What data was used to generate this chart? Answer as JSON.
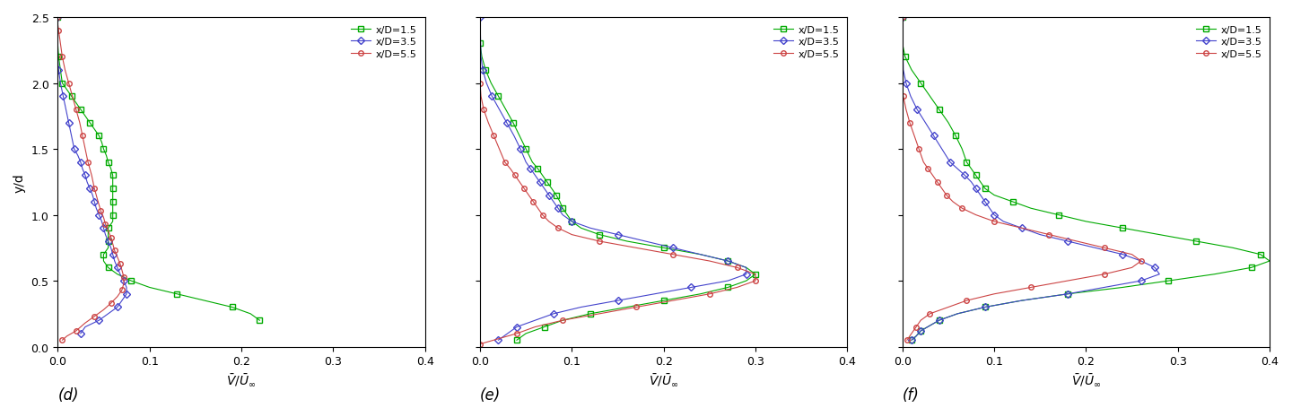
{
  "panels": [
    "d",
    "e",
    "f"
  ],
  "xlabel": "$\\bar{V}/\\bar{U}_{\\infty}$",
  "ylabel": "y/d",
  "xlim": [
    0,
    0.4
  ],
  "ylim": [
    0,
    2.5
  ],
  "xticks": [
    0,
    0.1,
    0.2,
    0.3,
    0.4
  ],
  "yticks": [
    0,
    0.5,
    1.0,
    1.5,
    2.0,
    2.5
  ],
  "legend_labels": [
    "x/D=1.5",
    "x/D=3.5",
    "x/D=5.5"
  ],
  "colors": [
    "#00aa00",
    "#4444cc",
    "#cc4444"
  ],
  "markers": [
    "s",
    "D",
    "o"
  ],
  "marker_size": 4,
  "line_width": 0.8,
  "panel_d": {
    "label": "(d)",
    "curves": {
      "xD1p5_v": [
        0.22,
        0.21,
        0.19,
        0.16,
        0.13,
        0.1,
        0.08,
        0.065,
        0.055,
        0.05,
        0.05,
        0.055,
        0.055,
        0.055,
        0.055,
        0.06,
        0.06,
        0.06,
        0.06,
        0.06,
        0.06,
        0.06,
        0.06,
        0.058,
        0.055,
        0.053,
        0.05,
        0.048,
        0.045,
        0.04,
        0.035,
        0.03,
        0.025,
        0.02,
        0.015,
        0.01,
        0.005,
        0.003,
        0.001,
        0.0,
        0.0
      ],
      "xD1p5_y": [
        0.2,
        0.25,
        0.3,
        0.35,
        0.4,
        0.45,
        0.5,
        0.55,
        0.6,
        0.65,
        0.7,
        0.75,
        0.8,
        0.85,
        0.9,
        0.95,
        1.0,
        1.05,
        1.1,
        1.15,
        1.2,
        1.25,
        1.3,
        1.35,
        1.4,
        1.45,
        1.5,
        1.55,
        1.6,
        1.65,
        1.7,
        1.75,
        1.8,
        1.85,
        1.9,
        1.95,
        2.0,
        2.1,
        2.2,
        2.3,
        2.5
      ],
      "xD3p5_v": [
        0.025,
        0.03,
        0.045,
        0.055,
        0.065,
        0.07,
        0.075,
        0.075,
        0.072,
        0.068,
        0.065,
        0.062,
        0.06,
        0.058,
        0.055,
        0.052,
        0.05,
        0.048,
        0.045,
        0.042,
        0.04,
        0.038,
        0.035,
        0.032,
        0.03,
        0.027,
        0.025,
        0.022,
        0.018,
        0.015,
        0.012,
        0.009,
        0.006,
        0.003,
        0.001,
        0.0,
        0.0
      ],
      "xD3p5_y": [
        0.1,
        0.15,
        0.2,
        0.25,
        0.3,
        0.35,
        0.4,
        0.45,
        0.5,
        0.55,
        0.6,
        0.65,
        0.7,
        0.75,
        0.8,
        0.85,
        0.9,
        0.95,
        1.0,
        1.05,
        1.1,
        1.15,
        1.2,
        1.25,
        1.3,
        1.35,
        1.4,
        1.45,
        1.5,
        1.6,
        1.7,
        1.8,
        1.9,
        2.0,
        2.1,
        2.2,
        2.5
      ],
      "xD5p5_v": [
        0.005,
        0.01,
        0.02,
        0.03,
        0.04,
        0.05,
        0.058,
        0.065,
        0.07,
        0.072,
        0.072,
        0.07,
        0.068,
        0.065,
        0.062,
        0.06,
        0.058,
        0.055,
        0.052,
        0.05,
        0.047,
        0.044,
        0.04,
        0.037,
        0.033,
        0.03,
        0.027,
        0.024,
        0.02,
        0.016,
        0.012,
        0.008,
        0.005,
        0.003,
        0.001,
        0.0,
        0.0
      ],
      "xD5p5_y": [
        0.05,
        0.08,
        0.12,
        0.18,
        0.23,
        0.28,
        0.33,
        0.38,
        0.43,
        0.48,
        0.53,
        0.58,
        0.63,
        0.68,
        0.73,
        0.78,
        0.83,
        0.88,
        0.93,
        0.98,
        1.03,
        1.1,
        1.2,
        1.3,
        1.4,
        1.5,
        1.6,
        1.7,
        1.8,
        1.9,
        2.0,
        2.1,
        2.2,
        2.3,
        2.4,
        2.45,
        2.5
      ]
    }
  },
  "panel_e": {
    "label": "(e)",
    "curves": {
      "xD1p5_v": [
        0.04,
        0.05,
        0.07,
        0.09,
        0.12,
        0.16,
        0.2,
        0.24,
        0.27,
        0.29,
        0.3,
        0.29,
        0.27,
        0.24,
        0.2,
        0.16,
        0.13,
        0.11,
        0.1,
        0.095,
        0.09,
        0.087,
        0.083,
        0.078,
        0.073,
        0.068,
        0.063,
        0.057,
        0.05,
        0.043,
        0.036,
        0.028,
        0.02,
        0.012,
        0.006,
        0.002,
        0.0,
        0.0
      ],
      "xD1p5_y": [
        0.05,
        0.1,
        0.15,
        0.2,
        0.25,
        0.3,
        0.35,
        0.4,
        0.45,
        0.5,
        0.55,
        0.6,
        0.65,
        0.7,
        0.75,
        0.8,
        0.85,
        0.9,
        0.95,
        1.0,
        1.05,
        1.1,
        1.15,
        1.2,
        1.25,
        1.3,
        1.35,
        1.4,
        1.5,
        1.6,
        1.7,
        1.8,
        1.9,
        2.0,
        2.1,
        2.2,
        2.3,
        2.5
      ],
      "xD3p5_v": [
        0.02,
        0.03,
        0.04,
        0.06,
        0.08,
        0.11,
        0.15,
        0.19,
        0.23,
        0.27,
        0.29,
        0.29,
        0.27,
        0.24,
        0.21,
        0.18,
        0.15,
        0.12,
        0.1,
        0.09,
        0.085,
        0.08,
        0.075,
        0.07,
        0.065,
        0.06,
        0.055,
        0.05,
        0.044,
        0.037,
        0.029,
        0.021,
        0.013,
        0.007,
        0.003,
        0.001,
        0.0
      ],
      "xD3p5_y": [
        0.05,
        0.1,
        0.15,
        0.2,
        0.25,
        0.3,
        0.35,
        0.4,
        0.45,
        0.5,
        0.55,
        0.6,
        0.65,
        0.7,
        0.75,
        0.8,
        0.85,
        0.9,
        0.95,
        1.0,
        1.05,
        1.1,
        1.15,
        1.2,
        1.25,
        1.3,
        1.35,
        1.4,
        1.5,
        1.6,
        1.7,
        1.8,
        1.9,
        2.0,
        2.1,
        2.2,
        2.5
      ],
      "xD5p5_v": [
        0.0,
        0.02,
        0.04,
        0.06,
        0.09,
        0.13,
        0.17,
        0.21,
        0.25,
        0.28,
        0.3,
        0.3,
        0.28,
        0.25,
        0.21,
        0.17,
        0.13,
        0.1,
        0.085,
        0.075,
        0.068,
        0.063,
        0.058,
        0.053,
        0.048,
        0.043,
        0.038,
        0.033,
        0.027,
        0.021,
        0.015,
        0.009,
        0.004,
        0.001,
        0.0,
        0.0
      ],
      "xD5p5_y": [
        0.02,
        0.06,
        0.1,
        0.15,
        0.2,
        0.25,
        0.3,
        0.35,
        0.4,
        0.45,
        0.5,
        0.55,
        0.6,
        0.65,
        0.7,
        0.75,
        0.8,
        0.85,
        0.9,
        0.95,
        1.0,
        1.05,
        1.1,
        1.15,
        1.2,
        1.25,
        1.3,
        1.35,
        1.4,
        1.5,
        1.6,
        1.7,
        1.8,
        1.9,
        2.0,
        2.5
      ]
    }
  },
  "panel_f": {
    "label": "(f)",
    "curves": {
      "xD1p5_v": [
        0.01,
        0.015,
        0.02,
        0.03,
        0.04,
        0.06,
        0.09,
        0.13,
        0.18,
        0.24,
        0.29,
        0.34,
        0.38,
        0.4,
        0.39,
        0.36,
        0.32,
        0.28,
        0.24,
        0.2,
        0.17,
        0.14,
        0.12,
        0.1,
        0.09,
        0.085,
        0.08,
        0.075,
        0.07,
        0.065,
        0.058,
        0.05,
        0.04,
        0.03,
        0.02,
        0.01,
        0.003,
        0.0,
        0.0
      ],
      "xD1p5_y": [
        0.05,
        0.08,
        0.12,
        0.16,
        0.2,
        0.25,
        0.3,
        0.35,
        0.4,
        0.45,
        0.5,
        0.55,
        0.6,
        0.65,
        0.7,
        0.75,
        0.8,
        0.85,
        0.9,
        0.95,
        1.0,
        1.05,
        1.1,
        1.15,
        1.2,
        1.25,
        1.3,
        1.35,
        1.4,
        1.5,
        1.6,
        1.7,
        1.8,
        1.9,
        2.0,
        2.1,
        2.2,
        2.3,
        2.5
      ],
      "xD3p5_v": [
        0.01,
        0.015,
        0.02,
        0.03,
        0.04,
        0.06,
        0.09,
        0.13,
        0.18,
        0.22,
        0.26,
        0.28,
        0.275,
        0.26,
        0.24,
        0.21,
        0.18,
        0.15,
        0.13,
        0.11,
        0.1,
        0.095,
        0.09,
        0.085,
        0.08,
        0.075,
        0.068,
        0.06,
        0.052,
        0.043,
        0.034,
        0.025,
        0.016,
        0.009,
        0.004,
        0.001,
        0.0
      ],
      "xD3p5_y": [
        0.05,
        0.08,
        0.12,
        0.16,
        0.2,
        0.25,
        0.3,
        0.35,
        0.4,
        0.45,
        0.5,
        0.55,
        0.6,
        0.65,
        0.7,
        0.75,
        0.8,
        0.85,
        0.9,
        0.95,
        1.0,
        1.05,
        1.1,
        1.15,
        1.2,
        1.25,
        1.3,
        1.35,
        1.4,
        1.5,
        1.6,
        1.7,
        1.8,
        1.9,
        2.0,
        2.1,
        2.5
      ],
      "xD5p5_v": [
        0.005,
        0.01,
        0.015,
        0.02,
        0.03,
        0.05,
        0.07,
        0.1,
        0.14,
        0.18,
        0.22,
        0.25,
        0.26,
        0.25,
        0.22,
        0.19,
        0.16,
        0.13,
        0.1,
        0.08,
        0.065,
        0.055,
        0.048,
        0.043,
        0.038,
        0.033,
        0.028,
        0.023,
        0.018,
        0.013,
        0.008,
        0.004,
        0.001,
        0.0,
        0.0
      ],
      "xD5p5_y": [
        0.05,
        0.1,
        0.15,
        0.2,
        0.25,
        0.3,
        0.35,
        0.4,
        0.45,
        0.5,
        0.55,
        0.6,
        0.65,
        0.7,
        0.75,
        0.8,
        0.85,
        0.9,
        0.95,
        1.0,
        1.05,
        1.1,
        1.15,
        1.2,
        1.25,
        1.3,
        1.35,
        1.4,
        1.5,
        1.6,
        1.7,
        1.8,
        1.9,
        2.0,
        2.5
      ]
    }
  }
}
